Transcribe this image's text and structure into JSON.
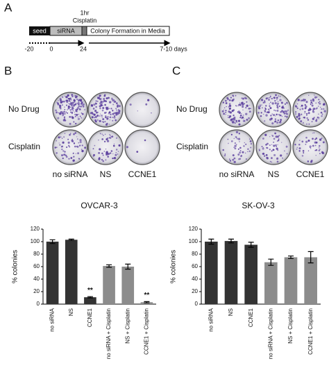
{
  "timeline": {
    "label": "A",
    "steps": [
      "seed",
      "siRNA",
      "Colony Formation in Media"
    ],
    "treatment": [
      "1hr",
      "Cisplatin"
    ],
    "times": [
      "-20",
      "0",
      "24",
      "7-10 days"
    ]
  },
  "plates": [
    {
      "label": "B",
      "rows": [
        "No Drug",
        "Cisplatin"
      ],
      "columns": [
        "no siRNA",
        "NS",
        "CCNE1"
      ]
    },
    {
      "label": "C",
      "rows": [
        "No Drug",
        "Cisplatin"
      ],
      "columns": [
        "no siRNA",
        "NS",
        "CCNE1"
      ]
    }
  ],
  "chart_data": [
    {
      "type": "bar",
      "title": "OVCAR-3",
      "y_label": "% colonies",
      "categories": [
        "no siRNA",
        "NS",
        "CCNE1",
        "no siRNA + Cisplatin",
        "NS + Cisplatin",
        "CCNE1 + Cisplatin"
      ],
      "values": [
        100,
        103,
        11,
        61,
        60,
        3
      ],
      "errors": [
        3,
        1,
        1,
        2,
        4,
        1
      ],
      "significance": [
        null,
        null,
        "**",
        null,
        null,
        "**"
      ],
      "colors": [
        "#333333",
        "#333333",
        "#333333",
        "#8c8c8c",
        "#8c8c8c",
        "#8c8c8c"
      ],
      "ylim": [
        0,
        120
      ],
      "yticks": [
        0,
        20,
        40,
        60,
        80,
        100,
        120
      ]
    },
    {
      "type": "bar",
      "title": "SK-OV-3",
      "y_label": "% colonies",
      "categories": [
        "no siRNA",
        "NS",
        "CCNE1",
        "no siRNA + Cisplatin",
        "NS + Cisplatin",
        "CCNE1 + Cisplatin"
      ],
      "values": [
        100,
        101,
        95,
        67,
        75,
        75
      ],
      "errors": [
        4,
        3,
        4,
        5,
        2,
        9
      ],
      "significance": [
        null,
        null,
        null,
        null,
        null,
        null
      ],
      "colors": [
        "#333333",
        "#333333",
        "#333333",
        "#8c8c8c",
        "#8c8c8c",
        "#8c8c8c"
      ],
      "ylim": [
        0,
        120
      ],
      "yticks": [
        0,
        20,
        40,
        60,
        80,
        100,
        120
      ]
    }
  ]
}
